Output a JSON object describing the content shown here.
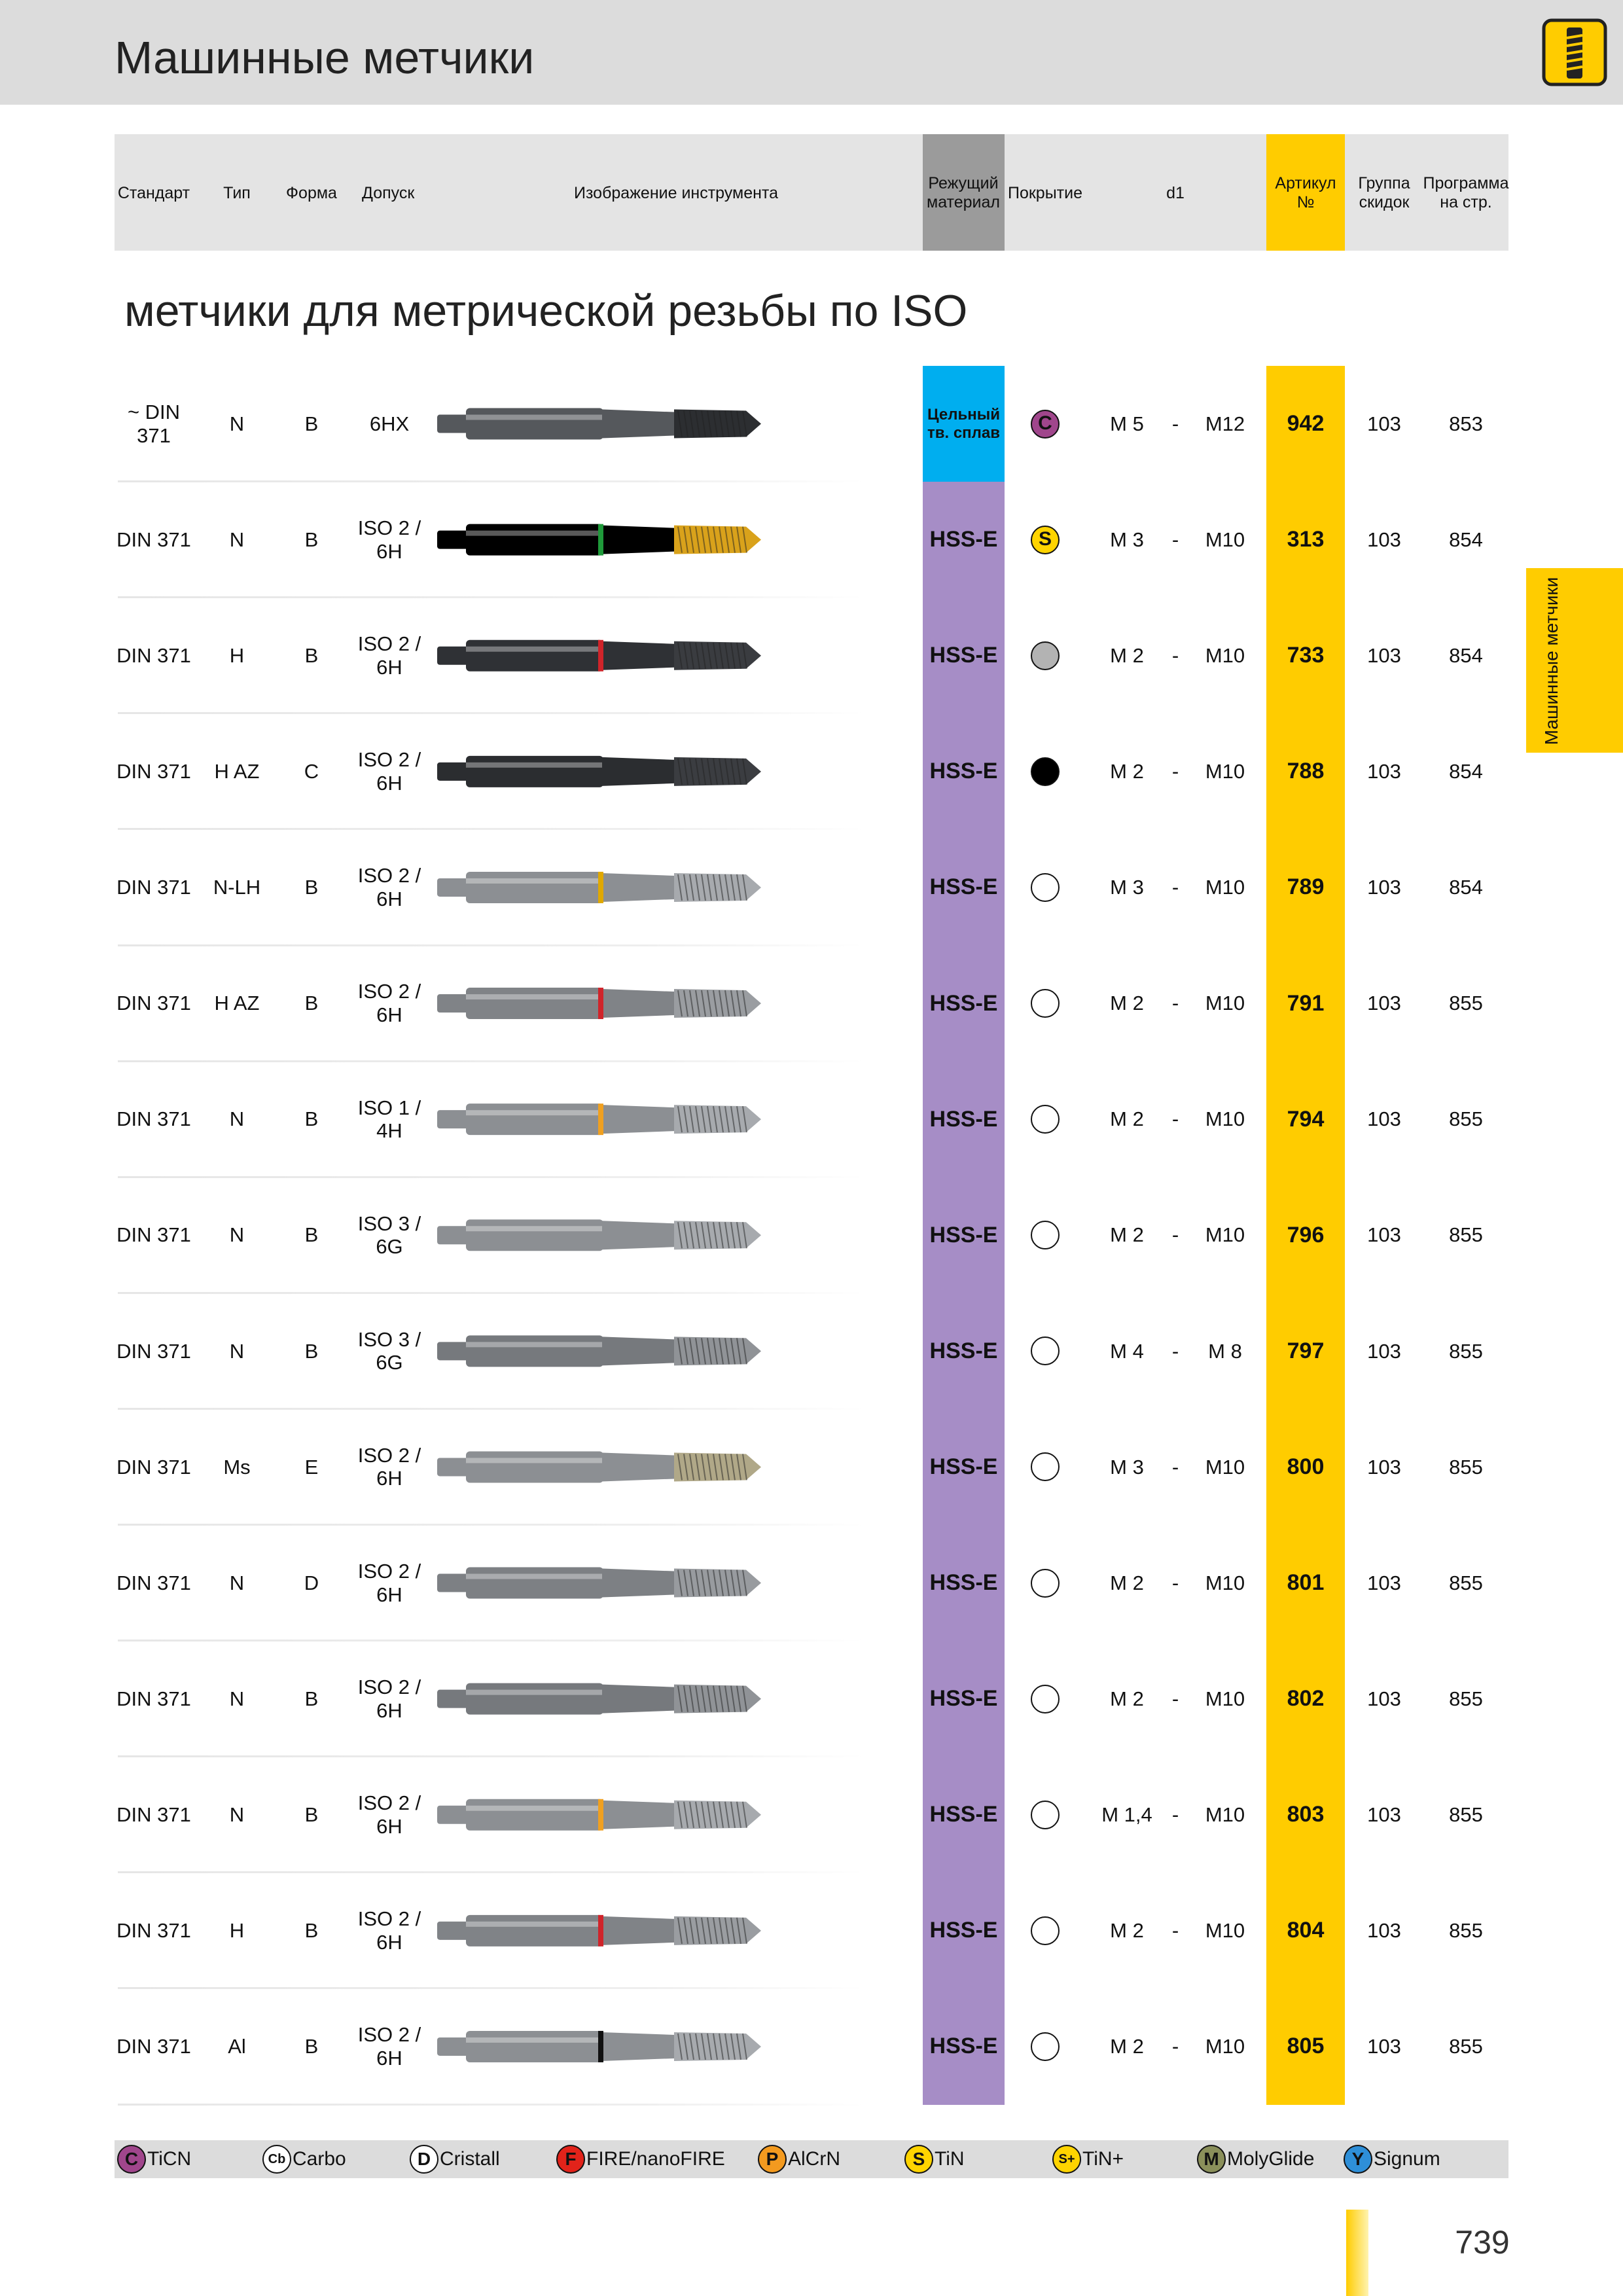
{
  "header": {
    "title": "Машинные метчики"
  },
  "side_tab": "Машинные метчики",
  "columns": [
    "Стандарт",
    "Тип",
    "Форма",
    "Допуск",
    "Изображение инструмента",
    "Режущий\nматериал",
    "Покрытие",
    "d1",
    "Артикул\n№",
    "Группа\nскидок",
    "Программа\nна стр."
  ],
  "section_title": "метчики для метрической резьбы по  ISO",
  "rows": [
    {
      "standard": "~ DIN\n371",
      "type": "N",
      "form": "B",
      "tolerance": "6HX",
      "material": "Цельный\nтв. сплав",
      "material_color": "#00aeef",
      "coating": {
        "symbol": "C",
        "color": "#a0468c"
      },
      "d1_from": "M 5",
      "dash": "-",
      "d1_to": "M12",
      "article": "942",
      "group": "103",
      "page": "853",
      "tool": {
        "body": "#55585c",
        "tip": "#2c2e31"
      }
    },
    {
      "standard": "DIN 371",
      "type": "N",
      "form": "B",
      "tolerance": "ISO 2 /\n6H",
      "material": "HSS-E",
      "material_color": "#a68dc6",
      "coating": {
        "symbol": "S",
        "color": "#ffd400"
      },
      "d1_from": "M 3",
      "dash": "-",
      "d1_to": "M10",
      "article": "313",
      "group": "103",
      "page": "854",
      "tool": {
        "body": "#9a9d a0",
        "tip": "#d9a21b",
        "ring": "#1f9a3a"
      }
    },
    {
      "standard": "DIN 371",
      "type": "H",
      "form": "B",
      "tolerance": "ISO 2 /\n6H",
      "material": "HSS-E",
      "material_color": "#a68dc6",
      "coating": {
        "color": "#b3b3b3"
      },
      "d1_from": "M 2",
      "dash": "-",
      "d1_to": "M10",
      "article": "733",
      "group": "103",
      "page": "854",
      "tool": {
        "body": "#2f3135",
        "tip": "#3a3c40",
        "ring": "#d0242a"
      }
    },
    {
      "standard": "DIN 371",
      "type": "H AZ",
      "form": "C",
      "tolerance": "ISO 2 /\n6H",
      "material": "HSS-E",
      "material_color": "#a68dc6",
      "coating": {
        "color": "#000000"
      },
      "d1_from": "M 2",
      "dash": "-",
      "d1_to": "M10",
      "article": "788",
      "group": "103",
      "page": "854",
      "tool": {
        "body": "#2b2d30",
        "tip": "#3b3d41"
      }
    },
    {
      "standard": "DIN 371",
      "type": "N-LH",
      "form": "B",
      "tolerance": "ISO 2 /\n6H",
      "material": "HSS-E",
      "material_color": "#a68dc6",
      "coating": {
        "color": "#ffffff"
      },
      "d1_from": "M 3",
      "dash": "-",
      "d1_to": "M10",
      "article": "789",
      "group": "103",
      "page": "854",
      "tool": {
        "body": "#8c8f93",
        "tip": "#a7aaae",
        "ring": "#e0a800"
      }
    },
    {
      "standard": "DIN 371",
      "type": "H AZ",
      "form": "B",
      "tolerance": "ISO 2 /\n6H",
      "material": "HSS-E",
      "material_color": "#a68dc6",
      "coating": {
        "color": "#ffffff"
      },
      "d1_from": "M 2",
      "dash": "-",
      "d1_to": "M10",
      "article": "791",
      "group": "103",
      "page": "855",
      "tool": {
        "body": "#808387",
        "tip": "#9a9da1",
        "ring": "#d0242a"
      }
    },
    {
      "standard": "DIN 371",
      "type": "N",
      "form": "B",
      "tolerance": "ISO 1 /\n4H",
      "material": "HSS-E",
      "material_color": "#a68dc6",
      "coating": {
        "color": "#ffffff"
      },
      "d1_from": "M 2",
      "dash": "-",
      "d1_to": "M10",
      "article": "794",
      "group": "103",
      "page": "855",
      "tool": {
        "body": "#8c8f93",
        "tip": "#a7aaae",
        "ring": "#f0a020"
      }
    },
    {
      "standard": "DIN 371",
      "type": "N",
      "form": "B",
      "tolerance": "ISO 3 /\n6G",
      "material": "HSS-E",
      "material_color": "#a68dc6",
      "coating": {
        "color": "#ffffff"
      },
      "d1_from": "M 2",
      "dash": "-",
      "d1_to": "M10",
      "article": "796",
      "group": "103",
      "page": "855",
      "tool": {
        "body": "#8c8f93",
        "tip": "#a7aaae"
      }
    },
    {
      "standard": "DIN 371",
      "type": "N",
      "form": "B",
      "tolerance": "ISO 3 /\n6G",
      "material": "HSS-E",
      "material_color": "#a68dc6",
      "coating": {
        "color": "#ffffff"
      },
      "d1_from": "M 4",
      "dash": "-",
      "d1_to": "M 8",
      "article": "797",
      "group": "103",
      "page": "855",
      "tool": {
        "body": "#76797d",
        "tip": "#909397"
      }
    },
    {
      "standard": "DIN 371",
      "type": "Ms",
      "form": "E",
      "tolerance": "ISO 2 /\n6H",
      "material": "HSS-E",
      "material_color": "#a68dc6",
      "coating": {
        "color": "#ffffff"
      },
      "d1_from": "M 3",
      "dash": "-",
      "d1_to": "M10",
      "article": "800",
      "group": "103",
      "page": "855",
      "tool": {
        "body": "#8c8f93",
        "tip": "#b0a888"
      }
    },
    {
      "standard": "DIN 371",
      "type": "N",
      "form": "D",
      "tolerance": "ISO 2 /\n6H",
      "material": "HSS-E",
      "material_color": "#a68dc6",
      "coating": {
        "color": "#ffffff"
      },
      "d1_from": "M 2",
      "dash": "-",
      "d1_to": "M10",
      "article": "801",
      "group": "103",
      "page": "855",
      "tool": {
        "body": "#7d8084",
        "tip": "#989b9f"
      }
    },
    {
      "standard": "DIN 371",
      "type": "N",
      "form": "B",
      "tolerance": "ISO 2 /\n6H",
      "material": "HSS-E",
      "material_color": "#a68dc6",
      "coating": {
        "color": "#ffffff"
      },
      "d1_from": "M 2",
      "dash": "-",
      "d1_to": "M10",
      "article": "802",
      "group": "103",
      "page": "855",
      "tool": {
        "body": "#76797d",
        "tip": "#909397"
      }
    },
    {
      "standard": "DIN 371",
      "type": "N",
      "form": "B",
      "tolerance": "ISO 2 /\n6H",
      "material": "HSS-E",
      "material_color": "#a68dc6",
      "coating": {
        "color": "#ffffff"
      },
      "d1_from": "M 1,4",
      "dash": "-",
      "d1_to": "M10",
      "article": "803",
      "group": "103",
      "page": "855",
      "tool": {
        "body": "#8c8f93",
        "tip": "#a7aaae",
        "ring": "#f0a020"
      }
    },
    {
      "standard": "DIN 371",
      "type": "H",
      "form": "B",
      "tolerance": "ISO 2 /\n6H",
      "material": "HSS-E",
      "material_color": "#a68dc6",
      "coating": {
        "color": "#ffffff"
      },
      "d1_from": "M 2",
      "dash": "-",
      "d1_to": "M10",
      "article": "804",
      "group": "103",
      "page": "855",
      "tool": {
        "body": "#808387",
        "tip": "#9a9da1",
        "ring": "#d0242a"
      }
    },
    {
      "standard": "DIN 371",
      "type": "Al",
      "form": "B",
      "tolerance": "ISO 2 /\n6H",
      "material": "HSS-E",
      "material_color": "#a68dc6",
      "coating": {
        "color": "#ffffff"
      },
      "d1_from": "M 2",
      "dash": "-",
      "d1_to": "M10",
      "article": "805",
      "group": "103",
      "page": "855",
      "tool": {
        "body": "#8c8f93",
        "tip": "#a7aaae",
        "ring": "#111111"
      }
    }
  ],
  "legend": [
    {
      "symbol": "C",
      "color": "#a0468c",
      "label": "TiCN"
    },
    {
      "symbol": "Cb",
      "color": "#ffffff",
      "label": "Carbo"
    },
    {
      "symbol": "D",
      "color": "#ffffff",
      "label": "Cristall"
    },
    {
      "symbol": "F",
      "color": "#e2231a",
      "label": "FIRE/nanoFIRE"
    },
    {
      "symbol": "P",
      "color": "#f39a1f",
      "label": "AlCrN"
    },
    {
      "symbol": "S",
      "color": "#ffd400",
      "label": "TiN"
    },
    {
      "symbol": "S+",
      "color": "#ffd400",
      "label": "TiN+"
    },
    {
      "symbol": "M",
      "color": "#8a8f5a",
      "label": "MolyGlide"
    },
    {
      "symbol": "Y",
      "color": "#2e8fd8",
      "label": "Signum"
    }
  ],
  "page_number": "739"
}
